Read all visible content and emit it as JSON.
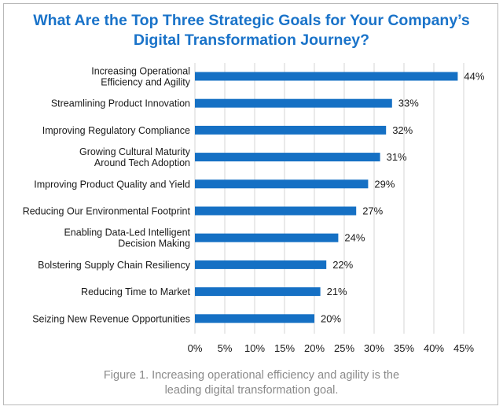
{
  "title": {
    "line1": "What Are the Top Three Strategic Goals for Your Company’s",
    "line2": "Digital Transformation Journey?"
  },
  "caption": {
    "line1": "Figure 1. Increasing operational efficiency and agility is the",
    "line2": "leading digital transformation goal."
  },
  "colors": {
    "bar": "#1570c4",
    "title": "#1a73c9",
    "grid": "#d4d4d4",
    "text": "#1a1a1a",
    "caption": "#8a8a8a"
  },
  "chart_data": {
    "type": "bar",
    "orientation": "horizontal",
    "title": "What Are the Top Three Strategic Goals for Your Company’s Digital Transformation Journey?",
    "categories": [
      [
        "Increasing Operational",
        "Efficiency and Agility"
      ],
      [
        "Streamlining Product Innovation"
      ],
      [
        "Improving Regulatory Compliance"
      ],
      [
        "Growing Cultural Maturity",
        "Around Tech Adoption"
      ],
      [
        "Improving Product Quality and Yield"
      ],
      [
        "Reducing Our Environmental Footprint"
      ],
      [
        "Enabling Data-Led Intelligent",
        "Decision Making"
      ],
      [
        "Bolstering Supply Chain Resiliency"
      ],
      [
        "Reducing Time to Market"
      ],
      [
        "Seizing New Revenue Opportunities"
      ]
    ],
    "values": [
      44,
      33,
      32,
      31,
      29,
      27,
      24,
      22,
      21,
      20
    ],
    "value_labels": [
      "44%",
      "33%",
      "32%",
      "31%",
      "29%",
      "27%",
      "24%",
      "22%",
      "21%",
      "20%"
    ],
    "xticks": [
      0,
      5,
      10,
      15,
      20,
      25,
      30,
      35,
      40,
      45
    ],
    "xtick_labels": [
      "0%",
      "5%",
      "10%",
      "15%",
      "20%",
      "25%",
      "30%",
      "35%",
      "40%",
      "45%"
    ],
    "xlim": [
      0,
      45
    ],
    "xlabel": "",
    "ylabel": "",
    "grid": true,
    "legend": false
  }
}
